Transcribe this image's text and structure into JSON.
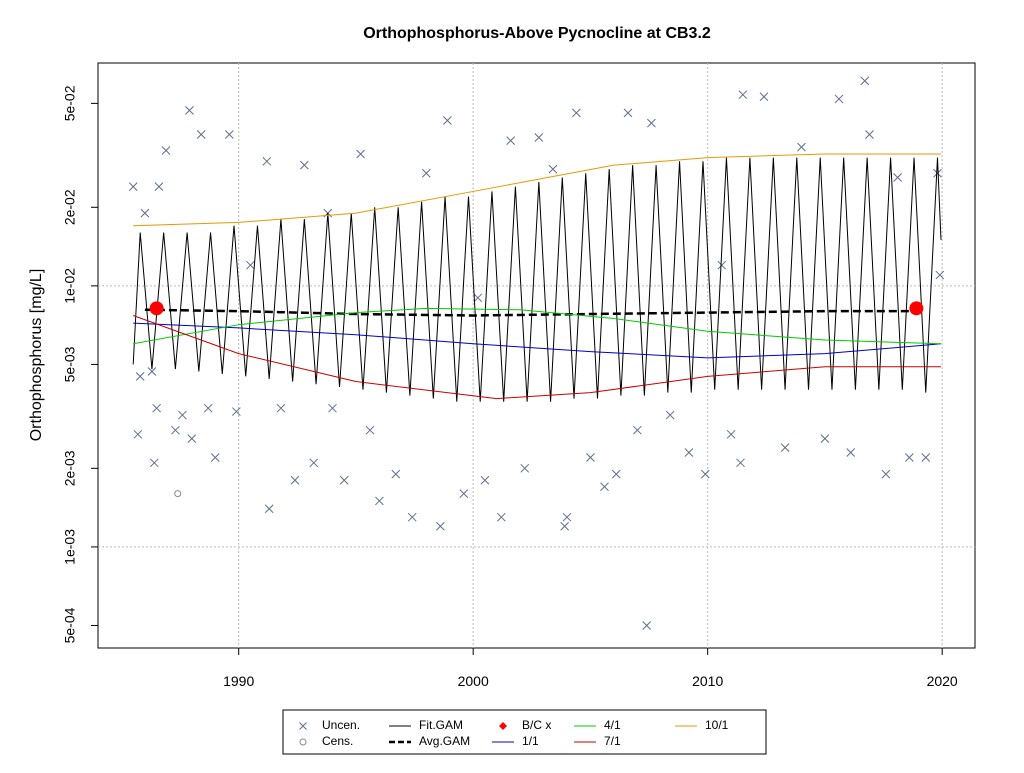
{
  "chart_data": {
    "type": "scatter",
    "title": "Orthophosphorus-Above Pycnocline at CB3.2",
    "y_label": "Orthophosphorus [mg/L]",
    "log_y": true,
    "grid": true,
    "legend": "bottom",
    "xlim": [
      1984,
      2021.4
    ],
    "xticks": [
      1990,
      2000,
      2010,
      2020
    ],
    "ylim": [
      0.00041,
      0.0714
    ],
    "yticks": [
      {
        "value": 0.0005,
        "label": "5e-04"
      },
      {
        "value": 0.001,
        "label": "1e-03"
      },
      {
        "value": 0.002,
        "label": "2e-03"
      },
      {
        "value": 0.005,
        "label": "5e-03"
      },
      {
        "value": 0.01,
        "label": "1e-02"
      },
      {
        "value": 0.02,
        "label": "2e-02"
      },
      {
        "value": 0.05,
        "label": "5e-02"
      }
    ],
    "series": [
      {
        "name": "Uncen.",
        "color": "#5c6e8e",
        "mode": "points",
        "marker": "x",
        "x": [
          1985.5,
          1985.7,
          1985.8,
          1986.0,
          1986.3,
          1986.4,
          1986.5,
          1986.6,
          1986.9,
          1987.3,
          1987.6,
          1987.9,
          1988.0,
          1988.4,
          1988.7,
          1989.0,
          1989.6,
          1989.9,
          1990.5,
          1991.2,
          1991.3,
          1991.8,
          1992.4,
          1992.8,
          1993.2,
          1993.8,
          1994.0,
          1994.5,
          1995.2,
          1995.6,
          1996.0,
          1996.7,
          1997.4,
          1998.0,
          1998.6,
          1998.9,
          1999.6,
          2000.2,
          2000.5,
          2001.2,
          2001.6,
          2002.2,
          2002.8,
          2003.4,
          2003.9,
          2004.0,
          2004.4,
          2005.0,
          2005.6,
          2006.1,
          2006.6,
          2007.0,
          2007.4,
          2007.6,
          2008.4,
          2009.2,
          2009.9,
          2010.6,
          2011.0,
          2011.4,
          2011.5,
          2012.4,
          2013.3,
          2014.0,
          2015.0,
          2015.6,
          2016.1,
          2016.7,
          2016.9,
          2017.6,
          2018.1,
          2018.6,
          2019.3,
          2019.8,
          2019.9
        ],
        "values": [
          0.024,
          0.0027,
          0.0045,
          0.019,
          0.0047,
          0.0021,
          0.0034,
          0.024,
          0.033,
          0.0028,
          0.0032,
          0.047,
          0.0026,
          0.038,
          0.0034,
          0.0022,
          0.038,
          0.0033,
          0.012,
          0.03,
          0.0014,
          0.0034,
          0.0018,
          0.029,
          0.0021,
          0.019,
          0.0034,
          0.0018,
          0.032,
          0.0028,
          0.0015,
          0.0019,
          0.0013,
          0.027,
          0.0012,
          0.043,
          0.0016,
          0.009,
          0.0018,
          0.0013,
          0.036,
          0.002,
          0.037,
          0.028,
          0.0012,
          0.0013,
          0.046,
          0.0022,
          0.0017,
          0.0019,
          0.046,
          0.0028,
          0.0005,
          0.042,
          0.0032,
          0.0023,
          0.0019,
          0.012,
          0.0027,
          0.0021,
          0.054,
          0.053,
          0.0024,
          0.034,
          0.0026,
          0.052,
          0.0023,
          0.061,
          0.038,
          0.0019,
          0.026,
          0.0022,
          0.0022,
          0.027,
          0.011
        ]
      },
      {
        "name": "Cens.",
        "color": "#8a8a8a",
        "mode": "points",
        "marker": "o",
        "x": [
          1987.4
        ],
        "values": [
          0.0016
        ]
      },
      {
        "name": "Fit.GAM",
        "color": "#000000",
        "mode": "line",
        "width": 1,
        "x": [
          1985.5,
          1985.8,
          1986.3,
          1986.8,
          1987.3,
          1987.8,
          1988.3,
          1988.8,
          1989.3,
          1989.8,
          1990.3,
          1990.8,
          1991.3,
          1991.8,
          1992.3,
          1992.8,
          1993.3,
          1993.8,
          1994.3,
          1994.8,
          1995.3,
          1995.8,
          1996.3,
          1996.8,
          1997.3,
          1997.8,
          1998.3,
          1998.8,
          1999.3,
          1999.8,
          2000.3,
          2000.8,
          2001.3,
          2001.8,
          2002.3,
          2002.8,
          2003.3,
          2003.8,
          2004.3,
          2004.8,
          2005.3,
          2005.8,
          2006.3,
          2006.8,
          2007.3,
          2007.8,
          2008.3,
          2008.8,
          2009.3,
          2009.8,
          2010.3,
          2010.8,
          2011.3,
          2011.8,
          2012.3,
          2012.8,
          2013.3,
          2013.8,
          2014.3,
          2014.8,
          2015.3,
          2015.8,
          2016.3,
          2016.8,
          2017.3,
          2017.8,
          2018.3,
          2018.8,
          2019.3,
          2019.8,
          2019.95
        ],
        "values": [
          0.005,
          0.016,
          0.0048,
          0.016,
          0.0048,
          0.016,
          0.0047,
          0.016,
          0.0046,
          0.017,
          0.0045,
          0.017,
          0.0044,
          0.018,
          0.0043,
          0.018,
          0.0042,
          0.019,
          0.0041,
          0.019,
          0.004,
          0.02,
          0.0039,
          0.02,
          0.0038,
          0.021,
          0.0037,
          0.022,
          0.0036,
          0.022,
          0.0036,
          0.023,
          0.0036,
          0.024,
          0.0036,
          0.025,
          0.0036,
          0.026,
          0.0037,
          0.027,
          0.0037,
          0.028,
          0.0038,
          0.029,
          0.0038,
          0.029,
          0.0039,
          0.03,
          0.0039,
          0.03,
          0.004,
          0.031,
          0.004,
          0.031,
          0.004,
          0.031,
          0.004,
          0.031,
          0.004,
          0.031,
          0.004,
          0.031,
          0.004,
          0.031,
          0.004,
          0.031,
          0.004,
          0.031,
          0.0039,
          0.031,
          0.015
        ]
      },
      {
        "name": "Avg.GAM",
        "color": "#000000",
        "mode": "line",
        "width": 2.5,
        "dash": true,
        "x": [
          1986,
          1990,
          1995,
          2000,
          2005,
          2010,
          2015,
          2019
        ],
        "values": [
          0.0081,
          0.008,
          0.0078,
          0.0077,
          0.0078,
          0.0079,
          0.008,
          0.008
        ]
      },
      {
        "name": "B/C x",
        "color": "#ff0000",
        "mode": "points",
        "marker": "dot",
        "x": [
          1986.5,
          2018.9
        ],
        "values": [
          0.0082,
          0.0082
        ]
      },
      {
        "name": "1/1",
        "color": "#0000cc",
        "mode": "line",
        "width": 1,
        "x": [
          1985.5,
          1990,
          1995,
          2000,
          2005,
          2010,
          2015,
          2019.95
        ],
        "values": [
          0.0072,
          0.0069,
          0.0065,
          0.006,
          0.0056,
          0.0053,
          0.0055,
          0.006
        ]
      },
      {
        "name": "4/1",
        "color": "#00cc00",
        "mode": "line",
        "width": 1,
        "x": [
          1985.5,
          1990,
          1995,
          1998,
          2002,
          2006,
          2010,
          2015,
          2019.95
        ],
        "values": [
          0.006,
          0.0071,
          0.0079,
          0.0082,
          0.0081,
          0.0075,
          0.0067,
          0.0062,
          0.006
        ]
      },
      {
        "name": "7/1",
        "color": "#cc0000",
        "mode": "line",
        "width": 1,
        "x": [
          1985.5,
          1990,
          1995,
          2001,
          2005,
          2010,
          2015,
          2019.95
        ],
        "values": [
          0.0077,
          0.0055,
          0.0043,
          0.0037,
          0.0039,
          0.0045,
          0.0049,
          0.0049
        ]
      },
      {
        "name": "10/1",
        "color": "#e69a00",
        "mode": "line",
        "width": 1,
        "x": [
          1985.5,
          1990,
          1995,
          2000,
          2006,
          2010,
          2015,
          2019.95
        ],
        "values": [
          0.017,
          0.0175,
          0.019,
          0.023,
          0.029,
          0.031,
          0.032,
          0.032
        ]
      }
    ]
  }
}
